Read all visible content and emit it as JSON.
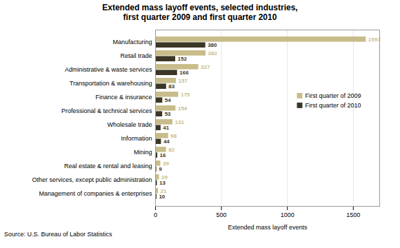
{
  "chart_data": {
    "type": "bar",
    "orientation": "horizontal",
    "title": "Extended mass layoff events, selected industries,\nfirst quarter 2009 and first quarter 2010",
    "caption": "Source: U.S. Bureau of Labor Statistics",
    "xlabel": "Extended mass layoff events",
    "categories": [
      "Manufacturing",
      "Retail trade",
      "Administrative & waste services",
      "Transportation & warehousing",
      "Finance & insurance",
      "Professional & technical services",
      "Wholesale trade",
      "Information",
      "Mining",
      "Real estate & rental and leasing",
      "Other services, except public administration",
      "Management of companies & enterprises"
    ],
    "series": [
      {
        "name": "First quarter of 2009",
        "color": "#C8BC8A",
        "values": [
          1597,
          382,
          327,
          157,
          175,
          154,
          131,
          98,
          82,
          39,
          29,
          21
        ]
      },
      {
        "name": "First quarter of 2010",
        "color": "#3B3626",
        "values": [
          380,
          152,
          166,
          83,
          54,
          53,
          41,
          44,
          16,
          9,
          13,
          10
        ]
      }
    ],
    "xlim": [
      0,
      1700
    ],
    "xticks": [
      0,
      500,
      1000,
      1500
    ],
    "grid": true,
    "legend": "right",
    "data_labels": true
  }
}
